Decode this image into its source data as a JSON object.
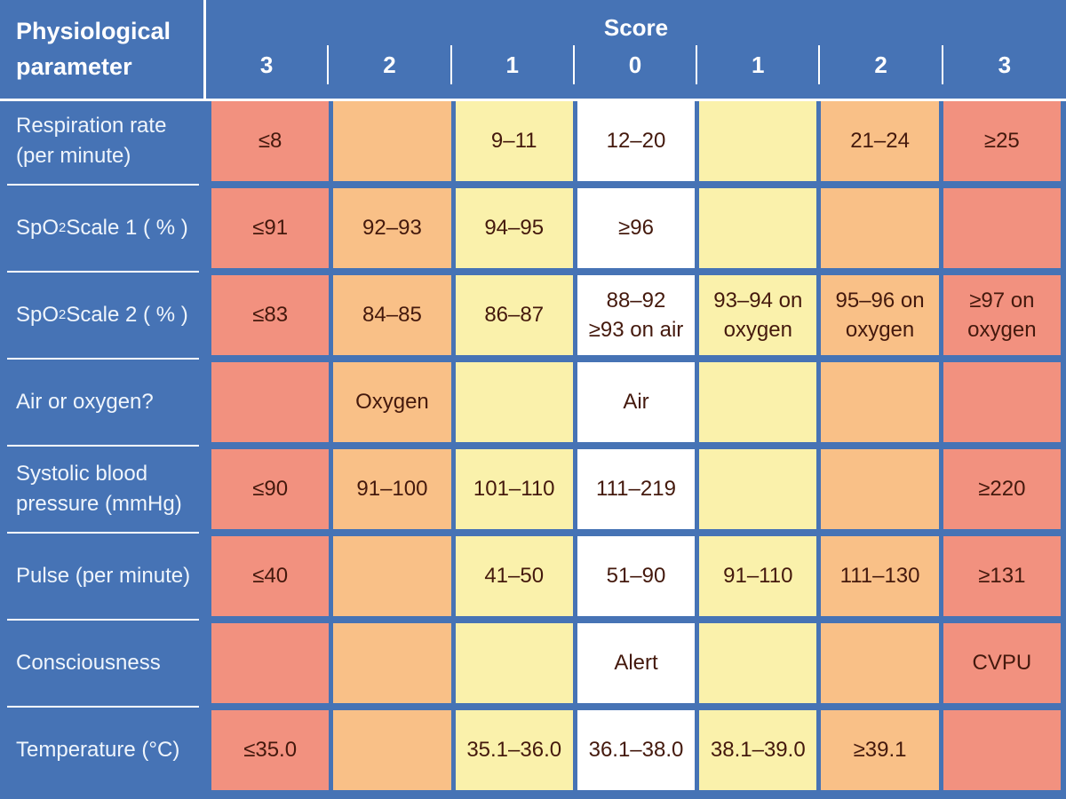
{
  "chart_data": {
    "type": "table",
    "title": "Score",
    "corner_header": "Physiological parameter",
    "columns": [
      "3",
      "2",
      "1",
      "0",
      "1",
      "2",
      "3"
    ],
    "column_scores": [
      3,
      2,
      1,
      0,
      1,
      2,
      3
    ],
    "rows": [
      {
        "parameter": "Respiration rate (per minute)",
        "label_pre": "Respiration rate (per minute)",
        "label_sub": "",
        "label_post": "",
        "values": [
          "≤8",
          "",
          "9–11",
          "12–20",
          "",
          "21–24",
          "≥25"
        ]
      },
      {
        "parameter": "SpO2 Scale 1 ( % )",
        "label_pre": "SpO",
        "label_sub": "2",
        "label_post": " Scale 1 ( % )",
        "values": [
          "≤91",
          "92–93",
          "94–95",
          "≥96",
          "",
          "",
          ""
        ]
      },
      {
        "parameter": "SpO2 Scale 2 ( % )",
        "label_pre": "SpO",
        "label_sub": "2",
        "label_post": " Scale 2 ( % )",
        "values": [
          "≤83",
          "84–85",
          "86–87",
          "88–92\n≥93 on air",
          "93–94 on\noxygen",
          "95–96 on\noxygen",
          "≥97 on\noxygen"
        ]
      },
      {
        "parameter": "Air or oxygen?",
        "label_pre": "Air or oxygen?",
        "label_sub": "",
        "label_post": "",
        "values": [
          "",
          "Oxygen",
          "",
          "Air",
          "",
          "",
          ""
        ]
      },
      {
        "parameter": "Systolic blood pressure (mmHg)",
        "label_pre": "Systolic blood pressure (mmHg)",
        "label_sub": "",
        "label_post": "",
        "values": [
          "≤90",
          "91–100",
          "101–110",
          "111–219",
          "",
          "",
          "≥220"
        ]
      },
      {
        "parameter": "Pulse (per minute)",
        "label_pre": "Pulse (per minute)",
        "label_sub": "",
        "label_post": "",
        "values": [
          "≤40",
          "",
          "41–50",
          "51–90",
          "91–110",
          "111–130",
          "≥131"
        ]
      },
      {
        "parameter": "Consciousness",
        "label_pre": "Consciousness",
        "label_sub": "",
        "label_post": "",
        "values": [
          "",
          "",
          "",
          "Alert",
          "",
          "",
          "CVPU"
        ]
      },
      {
        "parameter": "Temperature (°C)",
        "label_pre": "Temperature (°C)",
        "label_sub": "",
        "label_post": "",
        "values": [
          "≤35.0",
          "",
          "35.1–36.0",
          "36.1–38.0",
          "38.1–39.0",
          "≥39.1",
          ""
        ]
      }
    ],
    "score_colors": {
      "3": "#F2917F",
      "2": "#F9C087",
      "1": "#FAF1AB",
      "0": "#FFFFFF"
    },
    "background_color": "#4673B5",
    "cell_text_color": "#44190D",
    "header_text_color": "#FFFFFF",
    "legend_note": "cell color encodes score: 3=red, 2=orange, 1=yellow, 0=white"
  }
}
